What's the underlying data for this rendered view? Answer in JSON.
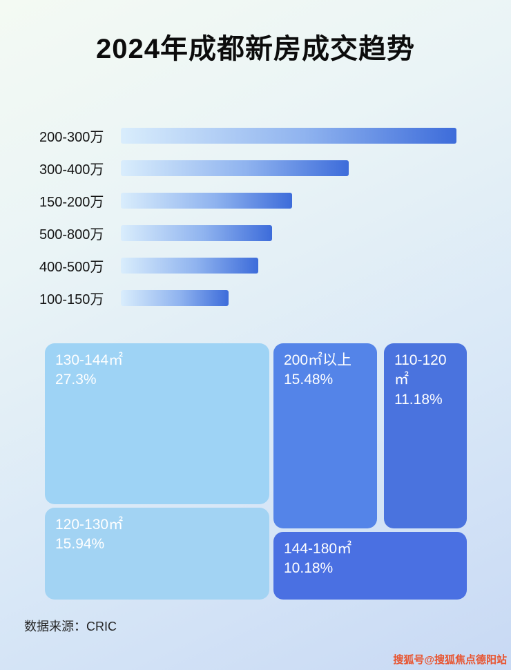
{
  "page": {
    "title": "2024年成都新房成交趋势",
    "source_note": "数据来源：CRIC",
    "watermark": "搜狐号@搜狐焦点德阳站"
  },
  "colors": {
    "bar_gradient_start": "#d9edfc",
    "bar_gradient_end": "#3d6cda",
    "treemap_light_blue": "#9ed3f5",
    "treemap_light_blue_2": "#a2d3f3",
    "treemap_medium_blue": "#5484e8",
    "treemap_deep_blue": "#4a73de",
    "watermark_color": "#e8542f"
  },
  "chart_data": [
    {
      "type": "bar",
      "orientation": "horizontal",
      "categories": [
        "200-300万",
        "300-400万",
        "150-200万",
        "500-800万",
        "400-500万",
        "100-150万"
      ],
      "values": [
        100,
        68,
        51,
        45,
        41,
        32
      ],
      "value_note": "no numeric axis shown; values are relative bar lengths normalized to max = 100",
      "xlabel": "",
      "ylabel": "",
      "grid": false,
      "legend": false
    },
    {
      "type": "treemap",
      "items": [
        {
          "label": "130-144㎡",
          "pct": "27.3%",
          "value": 27.3
        },
        {
          "label": "120-130㎡",
          "pct": "15.94%",
          "value": 15.94
        },
        {
          "label": "200㎡以上",
          "pct": "15.48%",
          "value": 15.48
        },
        {
          "label": "110-120㎡",
          "pct": "11.18%",
          "value": 11.18
        },
        {
          "label": "144-180㎡",
          "pct": "10.18%",
          "value": 10.18
        }
      ],
      "legend": false
    }
  ]
}
